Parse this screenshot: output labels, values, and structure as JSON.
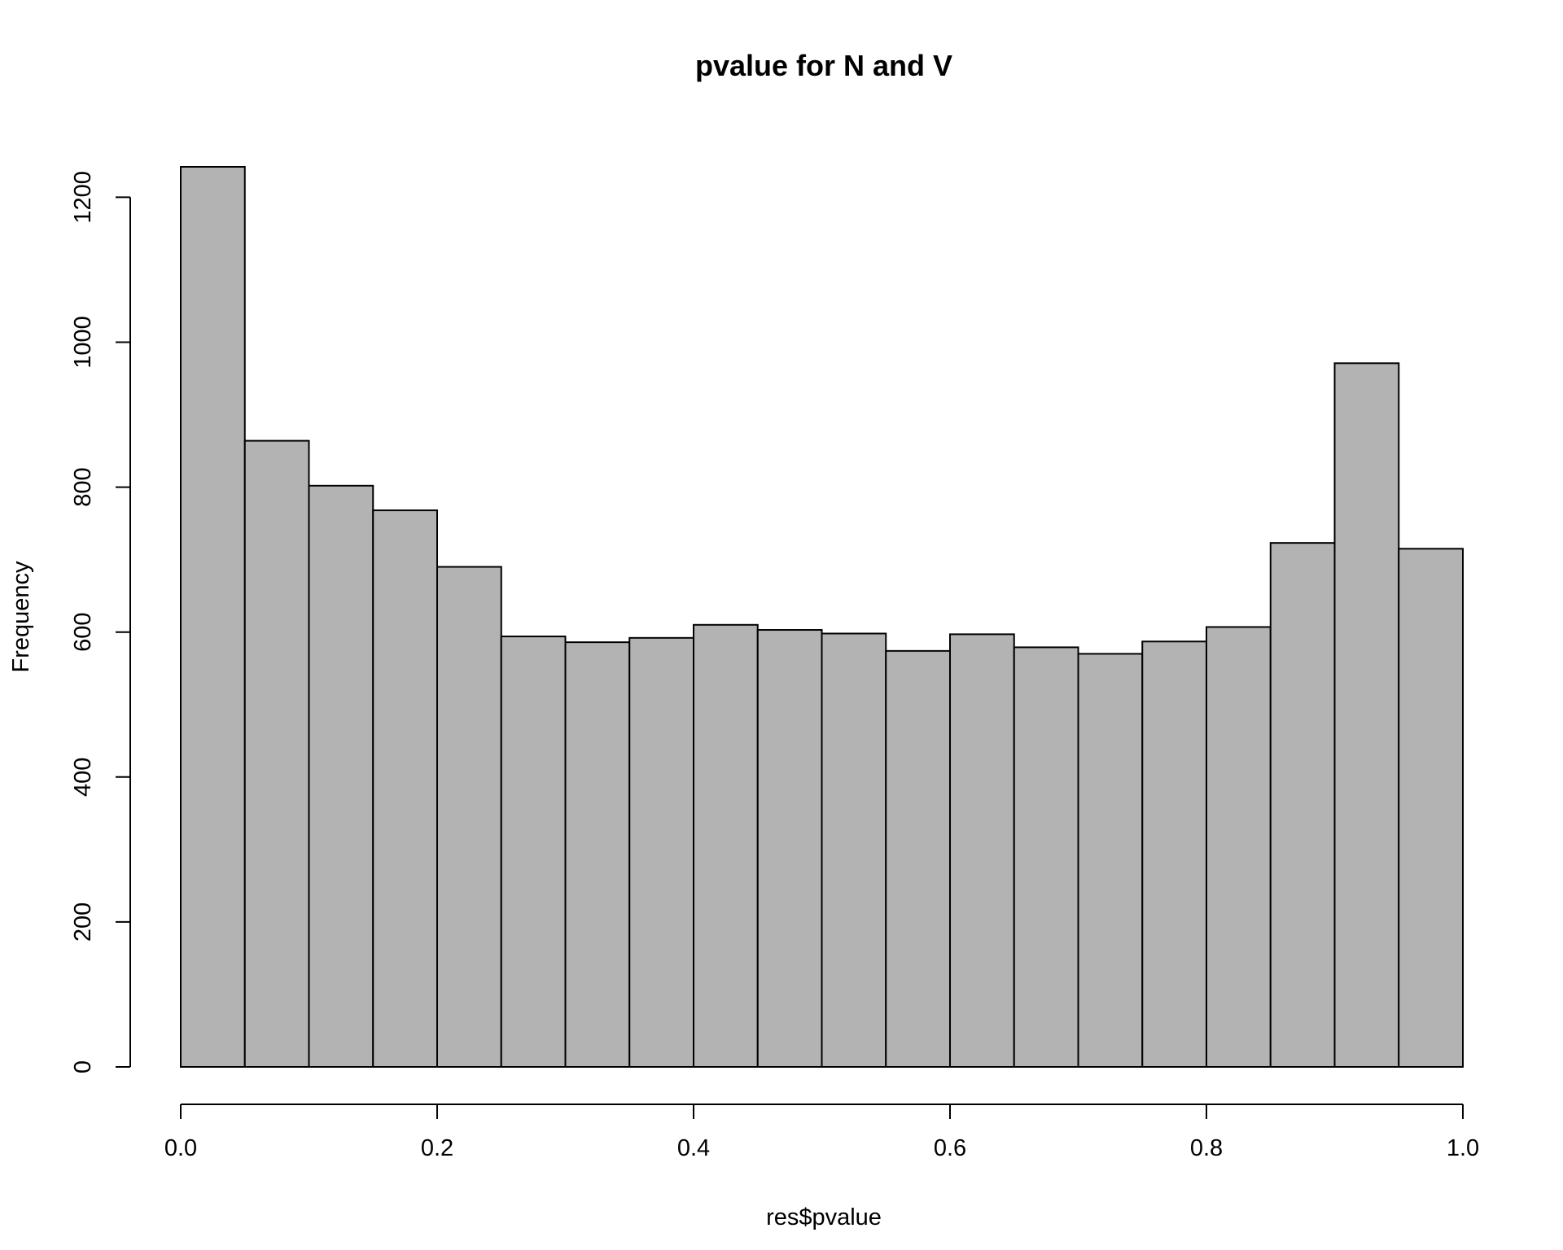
{
  "chart_data": {
    "type": "bar",
    "subtype": "histogram",
    "title": "pvalue for N and V",
    "xlabel": "res$pvalue",
    "ylabel": "Frequency",
    "bin_edges": [
      0.0,
      0.05,
      0.1,
      0.15,
      0.2,
      0.25,
      0.3,
      0.35,
      0.4,
      0.45,
      0.5,
      0.55,
      0.6,
      0.65,
      0.7,
      0.75,
      0.8,
      0.85,
      0.9,
      0.95,
      1.0
    ],
    "values": [
      1242,
      864,
      802,
      768,
      690,
      594,
      586,
      592,
      610,
      603,
      598,
      574,
      597,
      579,
      570,
      587,
      607,
      723,
      971,
      715
    ],
    "xlim": [
      0.0,
      1.0
    ],
    "ylim": [
      0,
      1242
    ],
    "x_ticks": [
      0.0,
      0.2,
      0.4,
      0.6,
      0.8,
      1.0
    ],
    "x_tick_labels": [
      "0.0",
      "0.2",
      "0.4",
      "0.6",
      "0.8",
      "1.0"
    ],
    "y_ticks": [
      0,
      200,
      400,
      600,
      800,
      1000,
      1200
    ],
    "y_tick_labels": [
      "0",
      "200",
      "400",
      "600",
      "800",
      "1000",
      "1200"
    ],
    "bar_color": "#b3b3b3",
    "edge_color": "#000000",
    "grid": false,
    "legend": false
  }
}
